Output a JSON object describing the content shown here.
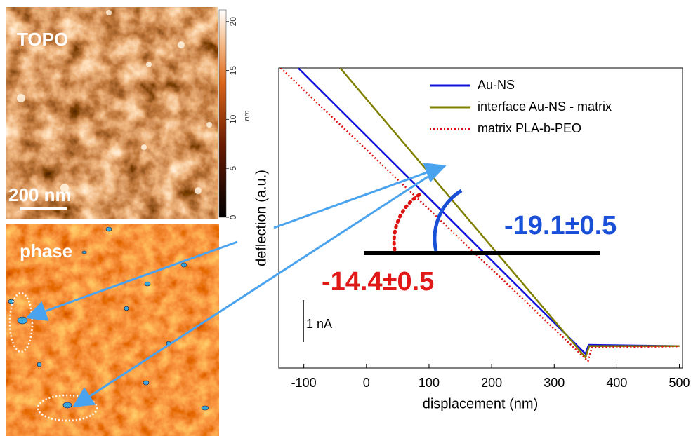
{
  "images": {
    "topo": {
      "label": "TOPO",
      "scale_bar": "200 nm",
      "colorbar": {
        "lim": [
          0,
          21.2
        ],
        "ticks": [
          0,
          5,
          10,
          15,
          20
        ],
        "unit": "nm"
      }
    },
    "phase": {
      "label": "phase"
    }
  },
  "chart_data": {
    "type": "line",
    "x_label": "displacement (nm)",
    "y_label": "deflection (a.u.)",
    "xlim": [
      -140,
      505
    ],
    "xticks": [
      -100,
      0,
      100,
      200,
      300,
      400,
      500
    ],
    "ylim": [
      0,
      100
    ],
    "series": [
      {
        "name": "Au-NS",
        "color": "#1010dd",
        "style": "solid",
        "x": [
          -109,
          350,
          355,
          500
        ],
        "values": [
          100,
          4.7,
          7.7,
          7.3
        ]
      },
      {
        "name": "interface Au-NS - matrix",
        "color": "#808000",
        "style": "solid",
        "x": [
          -42,
          350,
          356,
          500
        ],
        "values": [
          100,
          3.5,
          7.3,
          7.3
        ]
      },
      {
        "name": "matrix PLA-b-PEO",
        "color": "#e01010",
        "style": "dotted",
        "x": [
          -137,
          354,
          360,
          500
        ],
        "values": [
          100,
          2.3,
          6.8,
          7.2
        ]
      }
    ],
    "annotations": [
      "-19.1±0.5",
      "-14.4±0.5",
      "1 nA"
    ]
  }
}
